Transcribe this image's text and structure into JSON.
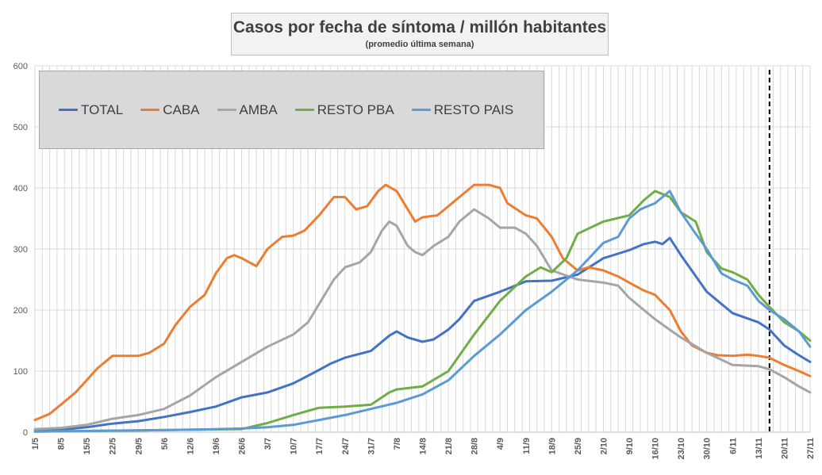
{
  "title": "Casos por fecha de síntoma / millón habitantes",
  "subtitle": "(promedio última semana)",
  "colors": {
    "TOTAL": "#4472c4",
    "CABA": "#ed7d31",
    "AMBA": "#a5a5a5",
    "RESTO PBA": "#70ad47",
    "RESTO PAIS": "#5b9bd5",
    "grid": "#d9d9d9",
    "axis_text": "#595959",
    "marker_line": "#000000"
  },
  "chart_data": {
    "type": "line",
    "title": "Casos por fecha de síntoma / millón habitantes",
    "subtitle": "(promedio última semana)",
    "xlabel": "",
    "ylabel": "",
    "ylim": [
      0,
      600
    ],
    "yticks": [
      0,
      100,
      200,
      300,
      400,
      500,
      600
    ],
    "xlim": [
      "2020-05-01",
      "2020-11-27"
    ],
    "xtick_dates": [
      "2020-05-01",
      "2020-05-08",
      "2020-05-15",
      "2020-05-22",
      "2020-05-29",
      "2020-06-05",
      "2020-06-12",
      "2020-06-19",
      "2020-06-26",
      "2020-07-03",
      "2020-07-10",
      "2020-07-17",
      "2020-07-24",
      "2020-07-31",
      "2020-08-07",
      "2020-08-14",
      "2020-08-21",
      "2020-08-28",
      "2020-09-04",
      "2020-09-11",
      "2020-09-18",
      "2020-09-25",
      "2020-10-02",
      "2020-10-09",
      "2020-10-16",
      "2020-10-23",
      "2020-10-30",
      "2020-11-06",
      "2020-11-13",
      "2020-11-20",
      "2020-11-27"
    ],
    "xtick_labels": [
      "1/5",
      "8/5",
      "15/5",
      "22/5",
      "29/5",
      "5/6",
      "12/6",
      "19/6",
      "26/6",
      "3/7",
      "10/7",
      "17/7",
      "24/7",
      "31/7",
      "7/8",
      "14/8",
      "21/8",
      "28/8",
      "4/9",
      "11/9",
      "18/9",
      "25/9",
      "2/10",
      "9/10",
      "16/10",
      "23/10",
      "30/10",
      "6/11",
      "13/11",
      "20/11",
      "27/11"
    ],
    "grid": true,
    "grid_step_days": 2,
    "legend_position": "top-left",
    "vertical_marker_date": "2020-11-16",
    "series": [
      {
        "name": "TOTAL",
        "color": "#4472c4",
        "x": [
          "2020-05-01",
          "2020-05-08",
          "2020-05-15",
          "2020-05-22",
          "2020-05-29",
          "2020-06-05",
          "2020-06-12",
          "2020-06-19",
          "2020-06-26",
          "2020-07-03",
          "2020-07-10",
          "2020-07-17",
          "2020-07-20",
          "2020-07-24",
          "2020-07-31",
          "2020-08-05",
          "2020-08-07",
          "2020-08-10",
          "2020-08-14",
          "2020-08-17",
          "2020-08-21",
          "2020-08-24",
          "2020-08-28",
          "2020-09-04",
          "2020-09-11",
          "2020-09-18",
          "2020-09-25",
          "2020-10-02",
          "2020-10-09",
          "2020-10-13",
          "2020-10-16",
          "2020-10-18",
          "2020-10-20",
          "2020-10-23",
          "2020-10-30",
          "2020-11-06",
          "2020-11-13",
          "2020-11-16",
          "2020-11-20",
          "2020-11-24",
          "2020-11-27"
        ],
        "y": [
          2,
          4,
          8,
          14,
          18,
          25,
          33,
          42,
          57,
          65,
          80,
          102,
          112,
          122,
          133,
          158,
          165,
          155,
          148,
          152,
          168,
          185,
          215,
          230,
          247,
          248,
          258,
          285,
          298,
          308,
          312,
          308,
          318,
          290,
          230,
          195,
          180,
          168,
          142,
          126,
          115
        ]
      },
      {
        "name": "CABA",
        "color": "#ed7d31",
        "x": [
          "2020-05-01",
          "2020-05-05",
          "2020-05-08",
          "2020-05-12",
          "2020-05-15",
          "2020-05-18",
          "2020-05-22",
          "2020-05-26",
          "2020-05-29",
          "2020-06-01",
          "2020-06-05",
          "2020-06-08",
          "2020-06-12",
          "2020-06-16",
          "2020-06-19",
          "2020-06-22",
          "2020-06-24",
          "2020-06-26",
          "2020-06-30",
          "2020-07-03",
          "2020-07-07",
          "2020-07-10",
          "2020-07-13",
          "2020-07-17",
          "2020-07-21",
          "2020-07-24",
          "2020-07-27",
          "2020-07-30",
          "2020-08-02",
          "2020-08-04",
          "2020-08-07",
          "2020-08-10",
          "2020-08-12",
          "2020-08-14",
          "2020-08-18",
          "2020-08-21",
          "2020-08-24",
          "2020-08-28",
          "2020-09-01",
          "2020-09-04",
          "2020-09-06",
          "2020-09-11",
          "2020-09-14",
          "2020-09-18",
          "2020-09-21",
          "2020-09-25",
          "2020-09-28",
          "2020-10-02",
          "2020-10-06",
          "2020-10-09",
          "2020-10-13",
          "2020-10-16",
          "2020-10-20",
          "2020-10-23",
          "2020-10-26",
          "2020-10-30",
          "2020-11-02",
          "2020-11-06",
          "2020-11-10",
          "2020-11-13",
          "2020-11-16",
          "2020-11-20",
          "2020-11-24",
          "2020-11-27"
        ],
        "y": [
          20,
          30,
          45,
          65,
          85,
          105,
          125,
          125,
          125,
          130,
          145,
          175,
          205,
          225,
          260,
          285,
          290,
          285,
          272,
          300,
          320,
          322,
          330,
          355,
          385,
          385,
          365,
          370,
          395,
          405,
          395,
          365,
          345,
          352,
          355,
          370,
          385,
          405,
          405,
          400,
          375,
          355,
          350,
          320,
          285,
          265,
          270,
          265,
          255,
          245,
          232,
          225,
          200,
          165,
          142,
          130,
          126,
          125,
          127,
          125,
          122,
          110,
          100,
          92
        ]
      },
      {
        "name": "AMBA",
        "color": "#a5a5a5",
        "x": [
          "2020-05-01",
          "2020-05-08",
          "2020-05-15",
          "2020-05-22",
          "2020-05-29",
          "2020-06-05",
          "2020-06-12",
          "2020-06-19",
          "2020-06-26",
          "2020-07-03",
          "2020-07-10",
          "2020-07-14",
          "2020-07-17",
          "2020-07-21",
          "2020-07-24",
          "2020-07-28",
          "2020-07-31",
          "2020-08-03",
          "2020-08-05",
          "2020-08-07",
          "2020-08-10",
          "2020-08-12",
          "2020-08-14",
          "2020-08-17",
          "2020-08-21",
          "2020-08-24",
          "2020-08-28",
          "2020-09-01",
          "2020-09-04",
          "2020-09-08",
          "2020-09-11",
          "2020-09-14",
          "2020-09-18",
          "2020-09-25",
          "2020-10-02",
          "2020-10-06",
          "2020-10-09",
          "2020-10-13",
          "2020-10-16",
          "2020-10-19",
          "2020-10-23",
          "2020-10-30",
          "2020-11-06",
          "2020-11-13",
          "2020-11-16",
          "2020-11-20",
          "2020-11-24",
          "2020-11-27"
        ],
        "y": [
          5,
          7,
          12,
          22,
          28,
          38,
          60,
          90,
          115,
          140,
          160,
          180,
          210,
          250,
          270,
          278,
          295,
          330,
          345,
          338,
          305,
          295,
          290,
          305,
          320,
          345,
          365,
          350,
          335,
          335,
          325,
          305,
          265,
          250,
          245,
          240,
          220,
          200,
          185,
          172,
          155,
          130,
          110,
          108,
          103,
          90,
          75,
          65
        ]
      },
      {
        "name": "RESTO PBA",
        "color": "#70ad47",
        "x": [
          "2020-05-01",
          "2020-05-15",
          "2020-05-29",
          "2020-06-12",
          "2020-06-26",
          "2020-07-03",
          "2020-07-10",
          "2020-07-17",
          "2020-07-24",
          "2020-07-31",
          "2020-08-05",
          "2020-08-07",
          "2020-08-14",
          "2020-08-21",
          "2020-08-28",
          "2020-09-04",
          "2020-09-11",
          "2020-09-15",
          "2020-09-18",
          "2020-09-22",
          "2020-09-25",
          "2020-10-02",
          "2020-10-09",
          "2020-10-13",
          "2020-10-16",
          "2020-10-18",
          "2020-10-20",
          "2020-10-23",
          "2020-10-27",
          "2020-10-30",
          "2020-11-03",
          "2020-11-06",
          "2020-11-10",
          "2020-11-13",
          "2020-11-16",
          "2020-11-20",
          "2020-11-24",
          "2020-11-27"
        ],
        "y": [
          1,
          2,
          3,
          4,
          5,
          15,
          28,
          40,
          42,
          45,
          65,
          70,
          75,
          100,
          160,
          215,
          255,
          270,
          262,
          285,
          325,
          345,
          355,
          380,
          395,
          390,
          385,
          360,
          345,
          295,
          268,
          262,
          250,
          225,
          205,
          180,
          165,
          150
        ]
      },
      {
        "name": "RESTO PAIS",
        "color": "#5b9bd5",
        "x": [
          "2020-05-01",
          "2020-05-15",
          "2020-05-29",
          "2020-06-12",
          "2020-06-26",
          "2020-07-03",
          "2020-07-10",
          "2020-07-17",
          "2020-07-24",
          "2020-07-31",
          "2020-08-07",
          "2020-08-14",
          "2020-08-21",
          "2020-08-28",
          "2020-09-04",
          "2020-09-11",
          "2020-09-18",
          "2020-09-25",
          "2020-10-02",
          "2020-10-06",
          "2020-10-09",
          "2020-10-12",
          "2020-10-16",
          "2020-10-18",
          "2020-10-20",
          "2020-10-23",
          "2020-10-27",
          "2020-10-30",
          "2020-11-03",
          "2020-11-06",
          "2020-11-10",
          "2020-11-13",
          "2020-11-16",
          "2020-11-20",
          "2020-11-24",
          "2020-11-27"
        ],
        "y": [
          1,
          2,
          3,
          4,
          6,
          8,
          12,
          20,
          28,
          38,
          48,
          62,
          85,
          125,
          160,
          200,
          230,
          265,
          310,
          320,
          350,
          365,
          375,
          385,
          395,
          360,
          325,
          300,
          260,
          250,
          240,
          215,
          200,
          185,
          165,
          140
        ]
      }
    ]
  }
}
